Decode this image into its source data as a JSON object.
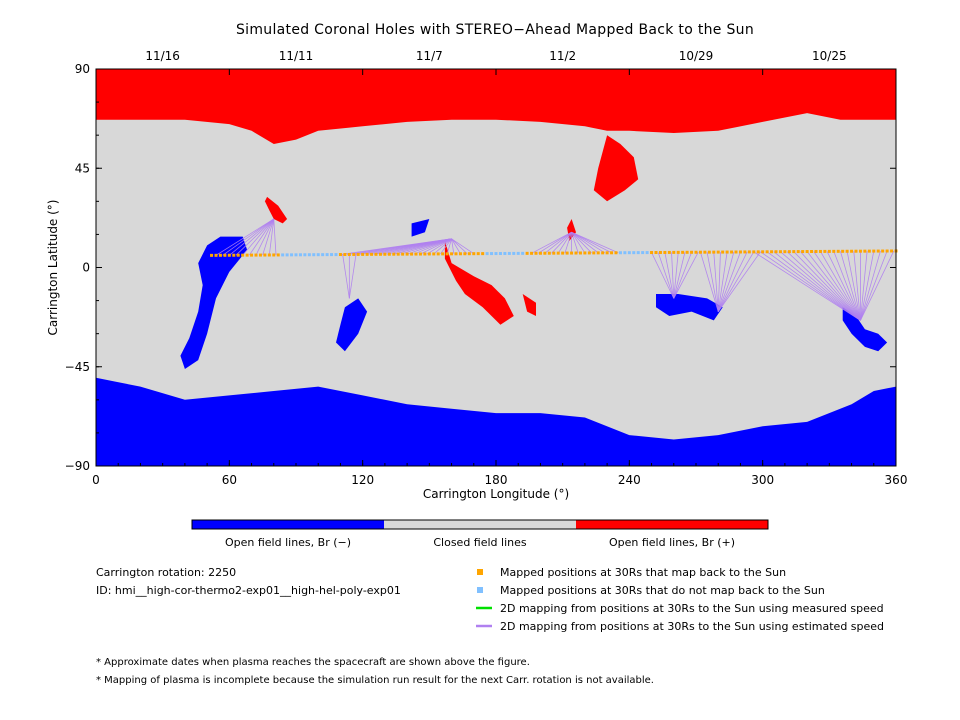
{
  "chart_data": {
    "type": "map",
    "title": "Simulated Coronal Holes with STEREO−Ahead Mapped Back to the Sun",
    "xlabel": "Carrington Longitude (°)",
    "ylabel": "Carrington Latitude (°)",
    "xlim": [
      0,
      360
    ],
    "ylim": [
      -90,
      90
    ],
    "x_ticks": [
      0,
      60,
      120,
      180,
      240,
      300,
      360
    ],
    "y_ticks": [
      -90,
      -45,
      0,
      45,
      90
    ],
    "top_date_ticks": [
      {
        "lon": 30,
        "label": "11/16"
      },
      {
        "lon": 90,
        "label": "11/11"
      },
      {
        "lon": 150,
        "label": "11/7"
      },
      {
        "lon": 210,
        "label": "11/2"
      },
      {
        "lon": 270,
        "label": "10/29"
      },
      {
        "lon": 330,
        "label": "10/25"
      }
    ],
    "colorbar": {
      "labels": [
        "Open field lines, Br (−)",
        "Closed field lines",
        "Open field lines, Br (+)"
      ],
      "colors": [
        "#0000ff",
        "#d8d8d8",
        "#ff0000"
      ]
    },
    "regions": [
      {
        "name": "Open field lines, Br (+)",
        "color": "#ff0000",
        "polygon": [
          [
            0,
            90
          ],
          [
            360,
            90
          ],
          [
            360,
            67
          ],
          [
            335,
            67
          ],
          [
            320,
            70
          ],
          [
            300,
            66
          ],
          [
            280,
            62
          ],
          [
            260,
            61
          ],
          [
            240,
            62
          ],
          [
            230,
            62
          ],
          [
            220,
            64
          ],
          [
            200,
            66
          ],
          [
            180,
            67
          ],
          [
            160,
            67
          ],
          [
            140,
            66
          ],
          [
            120,
            64
          ],
          [
            100,
            62
          ],
          [
            90,
            58
          ],
          [
            80,
            56
          ],
          [
            70,
            62
          ],
          [
            60,
            65
          ],
          [
            40,
            67
          ],
          [
            20,
            67
          ],
          [
            0,
            67
          ]
        ]
      },
      {
        "name": "Open field lines, Br (+)",
        "color": "#ff0000",
        "polygon": [
          [
            77,
            32
          ],
          [
            82,
            28
          ],
          [
            86,
            22
          ],
          [
            84,
            20
          ],
          [
            80,
            22
          ],
          [
            78,
            26
          ],
          [
            76,
            30
          ]
        ]
      },
      {
        "name": "Open field lines, Br (+)",
        "color": "#ff0000",
        "polygon": [
          [
            230,
            60
          ],
          [
            226,
            45
          ],
          [
            224,
            35
          ],
          [
            230,
            30
          ],
          [
            238,
            35
          ],
          [
            244,
            40
          ],
          [
            242,
            50
          ],
          [
            236,
            56
          ]
        ]
      },
      {
        "name": "Open field lines, Br (+)",
        "color": "#ff0000",
        "polygon": [
          [
            157,
            12
          ],
          [
            160,
            2
          ],
          [
            170,
            -4
          ],
          [
            178,
            -8
          ],
          [
            184,
            -14
          ],
          [
            188,
            -22
          ],
          [
            182,
            -26
          ],
          [
            174,
            -18
          ],
          [
            166,
            -12
          ],
          [
            162,
            -6
          ],
          [
            157,
            4
          ]
        ]
      },
      {
        "name": "Open field lines, Br (+)",
        "color": "#ff0000",
        "polygon": [
          [
            192,
            -12
          ],
          [
            198,
            -16
          ],
          [
            198,
            -22
          ],
          [
            194,
            -20
          ]
        ]
      },
      {
        "name": "Open field lines, Br (+)",
        "color": "#ff0000",
        "polygon": [
          [
            214,
            22
          ],
          [
            216,
            16
          ],
          [
            213,
            12
          ],
          [
            212,
            18
          ]
        ]
      },
      {
        "name": "Open field lines, Br (−)",
        "color": "#0000ff",
        "polygon": [
          [
            0,
            -50
          ],
          [
            20,
            -54
          ],
          [
            40,
            -60
          ],
          [
            60,
            -58
          ],
          [
            80,
            -56
          ],
          [
            100,
            -54
          ],
          [
            120,
            -58
          ],
          [
            140,
            -62
          ],
          [
            160,
            -64
          ],
          [
            180,
            -66
          ],
          [
            200,
            -66
          ],
          [
            220,
            -68
          ],
          [
            240,
            -76
          ],
          [
            260,
            -78
          ],
          [
            280,
            -76
          ],
          [
            300,
            -72
          ],
          [
            320,
            -70
          ],
          [
            340,
            -62
          ],
          [
            350,
            -56
          ],
          [
            360,
            -54
          ],
          [
            360,
            -90
          ],
          [
            0,
            -90
          ]
        ]
      },
      {
        "name": "Open field lines, Br (−)",
        "color": "#0000ff",
        "polygon": [
          [
            50,
            10
          ],
          [
            56,
            14
          ],
          [
            66,
            14
          ],
          [
            68,
            8
          ],
          [
            60,
            -2
          ],
          [
            54,
            -14
          ],
          [
            50,
            -30
          ],
          [
            46,
            -42
          ],
          [
            40,
            -46
          ],
          [
            38,
            -40
          ],
          [
            42,
            -32
          ],
          [
            46,
            -20
          ],
          [
            48,
            -8
          ],
          [
            46,
            2
          ]
        ]
      },
      {
        "name": "Open field lines, Br (−)",
        "color": "#0000ff",
        "polygon": [
          [
            112,
            -18
          ],
          [
            118,
            -14
          ],
          [
            122,
            -20
          ],
          [
            118,
            -30
          ],
          [
            112,
            -38
          ],
          [
            108,
            -34
          ],
          [
            110,
            -26
          ]
        ]
      },
      {
        "name": "Open field lines, Br (−)",
        "color": "#0000ff",
        "polygon": [
          [
            252,
            -12
          ],
          [
            262,
            -12
          ],
          [
            275,
            -14
          ],
          [
            282,
            -18
          ],
          [
            278,
            -24
          ],
          [
            268,
            -20
          ],
          [
            258,
            -22
          ],
          [
            252,
            -18
          ]
        ]
      },
      {
        "name": "Open field lines, Br (−)",
        "color": "#0000ff",
        "polygon": [
          [
            336,
            -18
          ],
          [
            342,
            -22
          ],
          [
            346,
            -28
          ],
          [
            352,
            -30
          ],
          [
            356,
            -34
          ],
          [
            352,
            -38
          ],
          [
            346,
            -36
          ],
          [
            340,
            -30
          ],
          [
            336,
            -24
          ]
        ]
      },
      {
        "name": "Open field lines, Br (−)",
        "color": "#0000ff",
        "polygon": [
          [
            142,
            20
          ],
          [
            150,
            22
          ],
          [
            148,
            16
          ],
          [
            142,
            14
          ]
        ]
      }
    ],
    "mapped_points": {
      "name": "Mapped positions at 30Rs that map back to the Sun",
      "color": "#ffa500",
      "lon_range": [
        52,
        360
      ],
      "lat_range": [
        5.5,
        7.5
      ]
    },
    "unmapped_points": {
      "name": "Mapped positions at 30Rs that do not map back to the Sun",
      "color": "#80c0ff",
      "segments": [
        [
          84,
          108
        ],
        [
          176,
          192
        ],
        [
          236,
          248
        ]
      ]
    },
    "mapping_lines": {
      "measured": {
        "name": "2D mapping from positions at 30Rs to the Sun using measured speed",
        "color": "#00e000"
      },
      "estimated": {
        "name": "2D mapping from positions at 30Rs to the Sun using estimated speed",
        "color": "#b080f0"
      },
      "footpoint_groups": [
        {
          "foot": [
            80,
            22
          ],
          "from": [
            54,
            86
          ]
        },
        {
          "foot": [
            160,
            13
          ],
          "from": [
            110,
            172
          ]
        },
        {
          "foot": [
            214,
            16
          ],
          "from": [
            196,
            240
          ]
        },
        {
          "foot": [
            260,
            -14
          ],
          "from": [
            250,
            272
          ]
        },
        {
          "foot": [
            280,
            -20
          ],
          "from": [
            272,
            300
          ]
        },
        {
          "foot": [
            344,
            -24
          ],
          "from": [
            296,
            360
          ]
        },
        {
          "foot": [
            114,
            -14
          ],
          "from": [
            108,
            118
          ]
        }
      ]
    },
    "legend": [
      {
        "marker": "square",
        "color": "#ffa500",
        "label": "Mapped positions at 30Rs that map back to the Sun"
      },
      {
        "marker": "square",
        "color": "#80c0ff",
        "label": "Mapped positions at 30Rs that do not map back to the Sun"
      },
      {
        "marker": "line",
        "color": "#00e000",
        "label": "2D mapping from positions at 30Rs to the Sun using measured speed"
      },
      {
        "marker": "line",
        "color": "#b080f0",
        "label": "2D mapping from positions at 30Rs to the Sun using estimated speed"
      }
    ]
  },
  "info": {
    "rotation": "Carrington rotation: 2250",
    "run_id": "ID: hmi__high-cor-thermo2-exp01__high-hel-poly-exp01"
  },
  "notes": [
    "* Approximate dates when plasma reaches the spacecraft are shown above the figure.",
    "* Mapping of plasma is incomplete because the simulation run result for the next Carr. rotation is not available."
  ]
}
